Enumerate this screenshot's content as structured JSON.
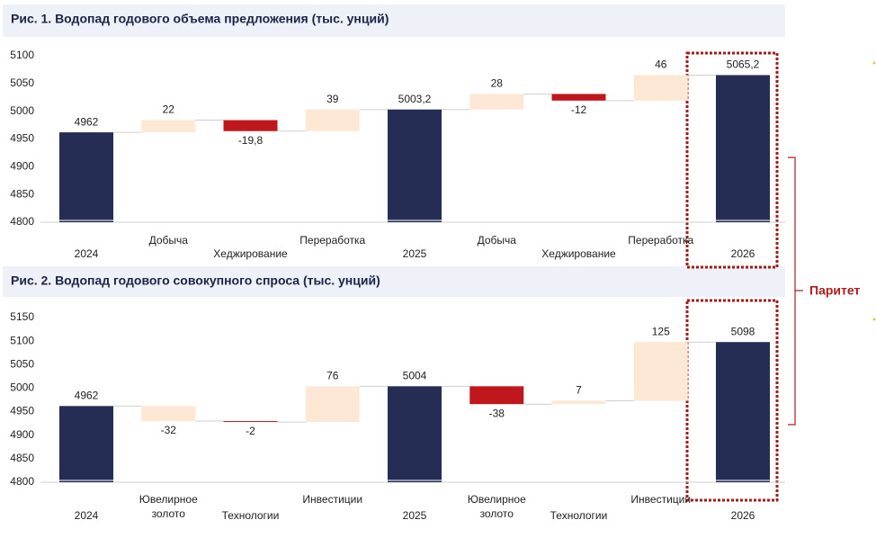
{
  "chart_data": [
    {
      "type": "waterfall",
      "title": "Рис. 1. Водопад годового объема предложения (тыс. унций)",
      "categories": [
        "2024",
        "Добыча",
        "Хеджирование",
        "Переработка",
        "2025",
        "Добыча",
        "Хеджирование",
        "Переработка",
        "2026"
      ],
      "values": [
        4962,
        22,
        -19.8,
        39,
        5003.2,
        28,
        -12,
        46,
        5065.2
      ],
      "value_labels": [
        "4962",
        "22",
        "-19,8",
        "39",
        "5003,2",
        "28",
        "-12",
        "46",
        "5065,2"
      ],
      "is_total": [
        true,
        false,
        false,
        false,
        true,
        false,
        false,
        false,
        true
      ],
      "colors": [
        "#262d55",
        "#fde8d6",
        "#c0171c",
        "#fde8d6",
        "#262d55",
        "#fde8d6",
        "#c0171c",
        "#fde8d6",
        "#262d55"
      ],
      "ylim": [
        4800,
        5100
      ],
      "yticks": [
        4800,
        4850,
        4900,
        4950,
        5000,
        5050,
        5100
      ]
    },
    {
      "type": "waterfall",
      "title": "Рис. 2. Водопад годового совокупного спроса (тыс. унций)",
      "categories": [
        "2024",
        [
          "Ювелирное",
          "золото"
        ],
        "Технологии",
        "Инвестиции",
        "2025",
        [
          "Ювелирное",
          "золото"
        ],
        "Технологии",
        "Инвестиции",
        "2026"
      ],
      "values": [
        4962,
        -32,
        -2,
        76,
        5004,
        -38,
        7,
        125,
        5098
      ],
      "value_labels": [
        "4962",
        "-32",
        "-2",
        "76",
        "5004",
        "-38",
        "7",
        "125",
        "5098"
      ],
      "is_total": [
        true,
        false,
        false,
        false,
        true,
        false,
        false,
        false,
        true
      ],
      "colors": [
        "#262d55",
        "#fde8d6",
        "#c0171c",
        "#fde8d6",
        "#262d55",
        "#c0171c",
        "#fde8d6",
        "#fde8d6",
        "#262d55"
      ],
      "ylim": [
        4800,
        5150
      ],
      "yticks": [
        4800,
        4850,
        4900,
        4950,
        5000,
        5050,
        5100,
        5150
      ]
    }
  ],
  "annotation": "Паритет"
}
